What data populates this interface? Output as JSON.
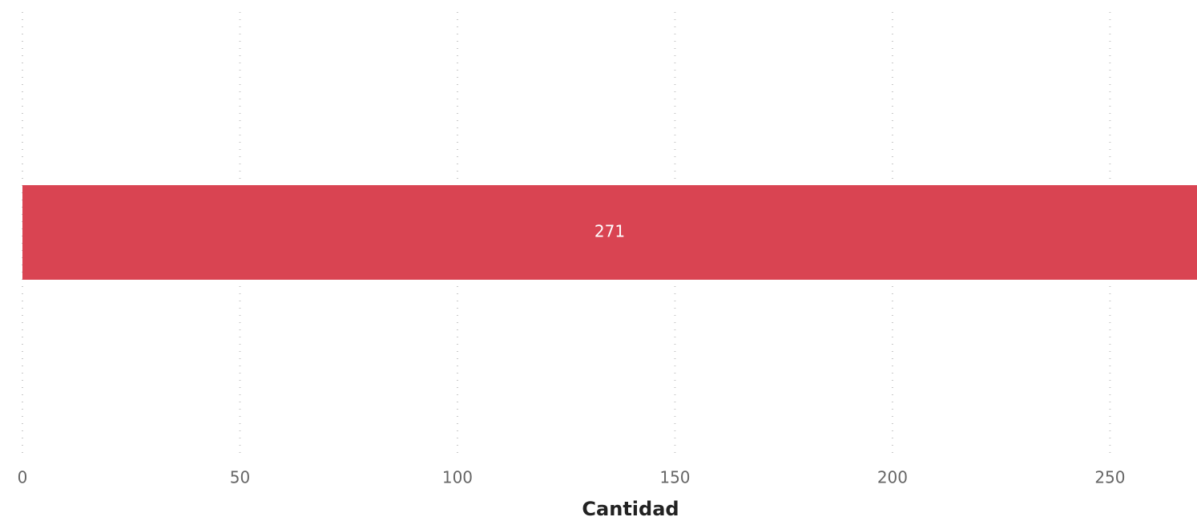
{
  "chart_data": {
    "type": "bar",
    "orientation": "horizontal",
    "categories": [
      null
    ],
    "values": [
      271
    ],
    "color": "#d94452",
    "xlabel": "Cantidad",
    "xlim": [
      0,
      270
    ],
    "xticks": [
      0,
      50,
      100,
      150,
      200,
      250
    ],
    "grid": true
  }
}
